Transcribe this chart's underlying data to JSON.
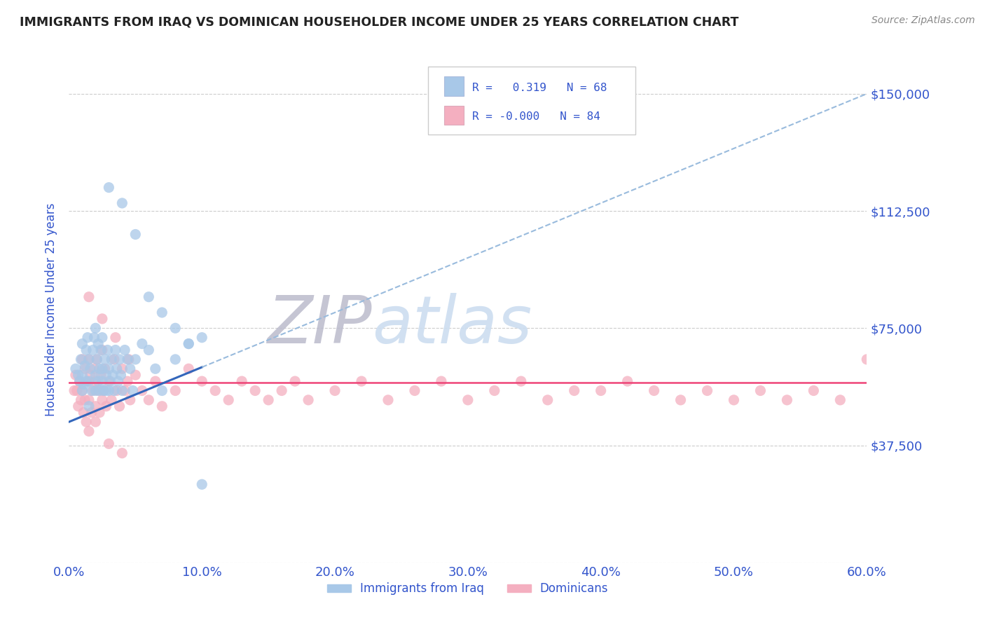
{
  "title": "IMMIGRANTS FROM IRAQ VS DOMINICAN HOUSEHOLDER INCOME UNDER 25 YEARS CORRELATION CHART",
  "source": "Source: ZipAtlas.com",
  "ylabel": "Householder Income Under 25 years",
  "yticks": [
    0,
    37500,
    75000,
    112500,
    150000
  ],
  "ytick_labels": [
    "",
    "$37,500",
    "$75,000",
    "$112,500",
    "$150,000"
  ],
  "xlim": [
    0,
    0.6
  ],
  "ylim": [
    0,
    162000
  ],
  "iraq_color": "#a8c8e8",
  "dominican_color": "#f4afc0",
  "iraq_trend_color": "#3366bb",
  "iraq_trend_dashed_color": "#99bbdd",
  "dominican_trend_color": "#ee4477",
  "legend_text_color": "#3355cc",
  "title_color": "#222222",
  "axis_label_color": "#3355cc",
  "background_color": "#ffffff",
  "grid_color": "#cccccc",
  "watermark_color": "#ccddf0",
  "iraq_R": 0.319,
  "iraq_N": 68,
  "dominican_R": -0.0,
  "dominican_N": 84,
  "iraq_trend_x0": 0.0,
  "iraq_trend_y0": 45000,
  "iraq_trend_x1": 0.6,
  "iraq_trend_y1": 150000,
  "dominican_trend_y": 57500,
  "iraq_scatter_x": [
    0.005,
    0.007,
    0.008,
    0.009,
    0.01,
    0.01,
    0.01,
    0.011,
    0.012,
    0.013,
    0.013,
    0.014,
    0.015,
    0.015,
    0.015,
    0.016,
    0.017,
    0.018,
    0.019,
    0.02,
    0.02,
    0.02,
    0.021,
    0.022,
    0.022,
    0.023,
    0.023,
    0.024,
    0.025,
    0.025,
    0.025,
    0.026,
    0.027,
    0.028,
    0.028,
    0.029,
    0.03,
    0.03,
    0.031,
    0.032,
    0.033,
    0.034,
    0.035,
    0.036,
    0.037,
    0.038,
    0.039,
    0.04,
    0.042,
    0.044,
    0.046,
    0.048,
    0.05,
    0.055,
    0.06,
    0.065,
    0.07,
    0.08,
    0.09,
    0.1,
    0.03,
    0.04,
    0.05,
    0.06,
    0.07,
    0.08,
    0.09,
    0.1
  ],
  "iraq_scatter_y": [
    62000,
    60000,
    58000,
    65000,
    55000,
    60000,
    70000,
    57000,
    63000,
    58000,
    68000,
    72000,
    65000,
    58000,
    50000,
    62000,
    55000,
    68000,
    72000,
    60000,
    55000,
    75000,
    65000,
    58000,
    70000,
    62000,
    55000,
    68000,
    58000,
    62000,
    72000,
    55000,
    65000,
    60000,
    55000,
    68000,
    55000,
    62000,
    58000,
    65000,
    60000,
    55000,
    68000,
    62000,
    58000,
    65000,
    60000,
    55000,
    68000,
    65000,
    62000,
    55000,
    65000,
    70000,
    68000,
    62000,
    55000,
    65000,
    70000,
    72000,
    120000,
    115000,
    105000,
    85000,
    80000,
    75000,
    70000,
    25000
  ],
  "dominican_scatter_x": [
    0.004,
    0.005,
    0.006,
    0.007,
    0.008,
    0.009,
    0.01,
    0.01,
    0.011,
    0.012,
    0.012,
    0.013,
    0.014,
    0.015,
    0.015,
    0.016,
    0.017,
    0.018,
    0.019,
    0.02,
    0.02,
    0.021,
    0.022,
    0.023,
    0.024,
    0.025,
    0.026,
    0.027,
    0.028,
    0.03,
    0.032,
    0.034,
    0.036,
    0.038,
    0.04,
    0.042,
    0.044,
    0.046,
    0.05,
    0.055,
    0.06,
    0.065,
    0.07,
    0.08,
    0.09,
    0.1,
    0.11,
    0.12,
    0.13,
    0.14,
    0.15,
    0.16,
    0.17,
    0.18,
    0.2,
    0.22,
    0.24,
    0.26,
    0.28,
    0.3,
    0.32,
    0.34,
    0.36,
    0.38,
    0.4,
    0.42,
    0.44,
    0.46,
    0.48,
    0.5,
    0.52,
    0.54,
    0.56,
    0.58,
    0.6,
    0.015,
    0.025,
    0.035,
    0.025,
    0.045,
    0.015,
    0.02,
    0.03,
    0.04
  ],
  "dominican_scatter_y": [
    55000,
    60000,
    55000,
    50000,
    58000,
    52000,
    65000,
    55000,
    48000,
    62000,
    52000,
    45000,
    58000,
    65000,
    52000,
    60000,
    48000,
    55000,
    62000,
    58000,
    50000,
    65000,
    55000,
    48000,
    60000,
    52000,
    55000,
    62000,
    50000,
    58000,
    52000,
    65000,
    55000,
    50000,
    62000,
    55000,
    58000,
    52000,
    60000,
    55000,
    52000,
    58000,
    50000,
    55000,
    62000,
    58000,
    55000,
    52000,
    58000,
    55000,
    52000,
    55000,
    58000,
    52000,
    55000,
    58000,
    52000,
    55000,
    58000,
    52000,
    55000,
    58000,
    52000,
    55000,
    55000,
    58000,
    55000,
    52000,
    55000,
    52000,
    55000,
    52000,
    55000,
    52000,
    65000,
    85000,
    78000,
    72000,
    68000,
    65000,
    42000,
    45000,
    38000,
    35000
  ]
}
